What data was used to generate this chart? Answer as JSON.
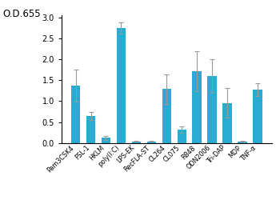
{
  "categories": [
    "Pam3CSK4",
    "FSL-1",
    "HKLM",
    "poly(I:C)",
    "LPS-EK",
    "RecFLA-ST",
    "CL264",
    "CL075",
    "R848",
    "ODN2006",
    "Tri-DAP",
    "MDP",
    "TNF-α"
  ],
  "values": [
    1.37,
    0.65,
    0.12,
    2.75,
    0.04,
    0.04,
    1.29,
    0.32,
    1.72,
    1.6,
    0.96,
    0.04,
    1.27
  ],
  "errors": [
    0.38,
    0.1,
    0.04,
    0.13,
    0.01,
    0.01,
    0.35,
    0.07,
    0.48,
    0.4,
    0.35,
    0.01,
    0.15
  ],
  "bar_color": "#29ABD4",
  "error_color": "#999999",
  "ylabel_text": "O.D.655",
  "ylim": [
    0,
    3.05
  ],
  "yticks": [
    0,
    0.5,
    1.0,
    1.5,
    2.0,
    2.5,
    3.0
  ],
  "figsize": [
    3.5,
    2.75
  ],
  "dpi": 100,
  "bar_width": 0.6,
  "tick_label_fontsize": 5.8,
  "ytick_fontsize": 7.0,
  "ylabel_fontsize": 8.5
}
